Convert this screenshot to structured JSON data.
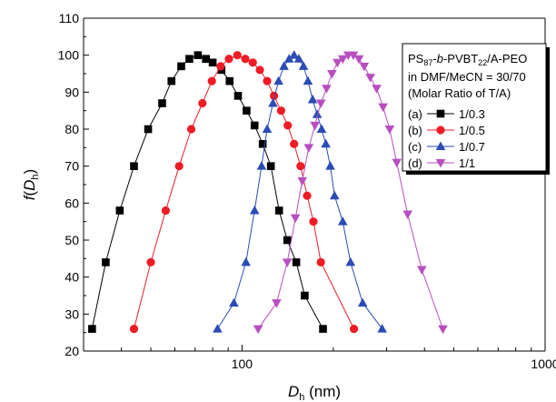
{
  "chart_data": {
    "type": "scatter",
    "title": "",
    "xlabel": "D_h (nm)",
    "ylabel": "f(D_h)",
    "xscale": "log",
    "xlim": [
      30,
      1000
    ],
    "ylim": [
      20,
      110
    ],
    "x_ticks": [
      100,
      1000
    ],
    "x_tick_labels": [
      "100",
      "1000"
    ],
    "y_ticks": [
      20,
      30,
      40,
      50,
      60,
      70,
      80,
      90,
      100,
      110
    ],
    "y_tick_labels": [
      "20",
      "30",
      "40",
      "50",
      "60",
      "70",
      "80",
      "90",
      "100",
      "110"
    ],
    "grid": false,
    "legend_position": "top-right",
    "legend_header": {
      "line1_parts": [
        {
          "text": "PS",
          "style": "normal"
        },
        {
          "text": "87",
          "style": "sub"
        },
        {
          "text": "-",
          "style": "normal"
        },
        {
          "text": "b",
          "style": "italic"
        },
        {
          "text": "-PVBT",
          "style": "normal"
        },
        {
          "text": "22",
          "style": "sub"
        },
        {
          "text": "/A-PEO",
          "style": "normal"
        }
      ],
      "line2": "in DMF/MeCN = 30/70",
      "line3": "(Molar Ratio of T/A)"
    },
    "series": [
      {
        "tag": "(a)",
        "name": "1/0.3",
        "color": "#000000",
        "marker": "square",
        "x": [
          32,
          35.5,
          39.5,
          44,
          49,
          54.5,
          58.5,
          63,
          67,
          71.5,
          76,
          80,
          85.5,
          91,
          97,
          103.5,
          110,
          117,
          124.5,
          132.5,
          141,
          151,
          161,
          185
        ],
        "y": [
          26,
          44,
          58,
          70,
          80,
          87,
          93,
          97,
          99,
          100,
          99,
          98,
          96,
          93,
          89,
          85,
          81,
          76,
          70,
          58,
          50,
          44,
          35,
          26
        ]
      },
      {
        "tag": "(b)",
        "name": "1/0.5",
        "color": "#ee1c24",
        "marker": "circle",
        "x": [
          44,
          50,
          56,
          62,
          68,
          74,
          79.5,
          85,
          90.5,
          96.5,
          102.5,
          108.5,
          114.5,
          121,
          127.5,
          134.5,
          141.5,
          148.5,
          156,
          164,
          172,
          182,
          234
        ],
        "y": [
          26,
          44,
          58,
          70,
          80,
          87,
          93,
          97,
          99,
          100,
          99,
          98,
          96,
          93,
          89,
          85,
          81,
          76,
          70,
          62,
          55,
          44,
          26
        ]
      },
      {
        "tag": "(c)",
        "name": "1/0.7",
        "color": "#2b4bb5",
        "marker": "triangle-up",
        "x": [
          83,
          94,
          103,
          110,
          116,
          121,
          126.5,
          132,
          137.5,
          143,
          148.5,
          154,
          159.5,
          165,
          171,
          177,
          183,
          189,
          195.5,
          202,
          215,
          228,
          250,
          290
        ],
        "y": [
          26,
          33,
          44,
          58,
          70,
          80,
          87,
          93,
          97,
          99,
          100,
          99,
          97,
          93,
          88,
          84,
          80,
          76,
          70,
          62,
          55,
          44,
          33,
          26
        ]
      },
      {
        "tag": "(d)",
        "name": "1/1",
        "color": "#b84ec0",
        "marker": "triangle-down",
        "x": [
          113,
          130,
          141,
          150,
          158,
          166,
          174,
          182,
          190,
          198,
          206.5,
          215,
          224,
          233,
          243,
          253,
          265,
          278,
          292,
          307,
          324,
          352,
          392,
          460
        ],
        "y": [
          26,
          33,
          44,
          56,
          66,
          75,
          81,
          87,
          91,
          95,
          98,
          99,
          100,
          100,
          99,
          97,
          94,
          91,
          86,
          80,
          71,
          57,
          42,
          26
        ]
      }
    ]
  }
}
